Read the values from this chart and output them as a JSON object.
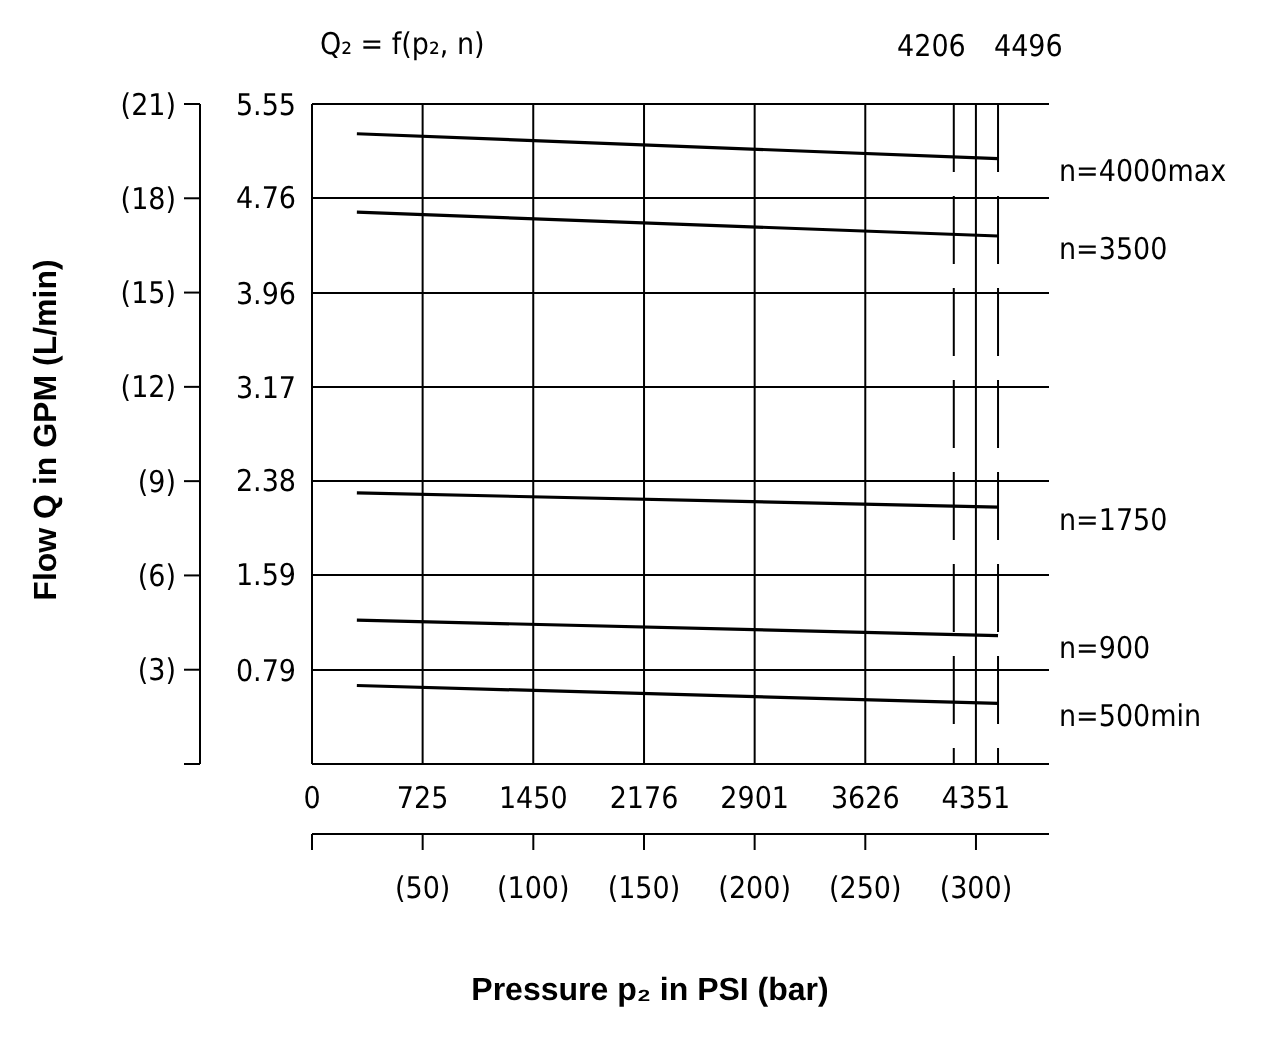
{
  "chart_data": {
    "type": "line",
    "title": "Q₂ = f(p₂, n)",
    "xlabel": "Pressure p₂ in PSI (bar)",
    "ylabel": "Flow Q in GPM (L/min)",
    "x": [
      294,
      4496
    ],
    "series": [
      {
        "name": "n=4000max",
        "color": "#000000",
        "axis": "y2",
        "values": [
          5.3,
          5.09
        ]
      },
      {
        "name": "n=3500",
        "color": "#000000",
        "axis": "y2",
        "values": [
          4.64,
          4.44
        ]
      },
      {
        "name": "n=1750",
        "color": "#000000",
        "axis": "y2",
        "values": [
          2.28,
          2.16
        ]
      },
      {
        "name": "n=900",
        "color": "#000000",
        "axis": "y2",
        "values": [
          1.21,
          1.08
        ]
      },
      {
        "name": "n=500min",
        "color": "#000000",
        "axis": "y2",
        "values": [
          0.66,
          0.51
        ]
      }
    ],
    "xlim": [
      0,
      4830
    ],
    "xticks": [
      0,
      725,
      1450,
      2176,
      2901,
      3626,
      4351
    ],
    "ylim": [
      0,
      21
    ],
    "yticks": [
      {
        "value": 0,
        "label": null
      },
      {
        "value": 3,
        "label": "(3)"
      },
      {
        "value": 6,
        "label": "(6)"
      },
      {
        "value": 9,
        "label": "(9)"
      },
      {
        "value": 12,
        "label": "(12)"
      },
      {
        "value": 15,
        "label": "(15)"
      },
      {
        "value": 18,
        "label": "(18)"
      },
      {
        "value": 21,
        "label": "(21)"
      }
    ],
    "y2lim": [
      0,
      5.55
    ],
    "y2ticks": [
      {
        "value": 0,
        "label": null
      },
      0.79,
      1.59,
      2.38,
      3.17,
      3.96,
      4.76,
      5.55
    ],
    "x2lim": [
      0,
      333
    ],
    "x2ticks": [
      {
        "value": 0,
        "label": null
      },
      {
        "value": 50,
        "label": "(50)"
      },
      {
        "value": 100,
        "label": "(100)"
      },
      {
        "value": 150,
        "label": "(150)"
      },
      {
        "value": 200,
        "label": "(200)"
      },
      {
        "value": 250,
        "label": "(250)"
      },
      {
        "value": 300,
        "label": "(300)"
      }
    ],
    "ref_lines": [
      {
        "axis": "x",
        "value": 4206,
        "label": "4206",
        "line_style": "dashed"
      },
      {
        "axis": "x",
        "value": 4496,
        "label": "4496",
        "line_style": "dashed"
      }
    ],
    "grid": true,
    "line_style": "solid"
  }
}
